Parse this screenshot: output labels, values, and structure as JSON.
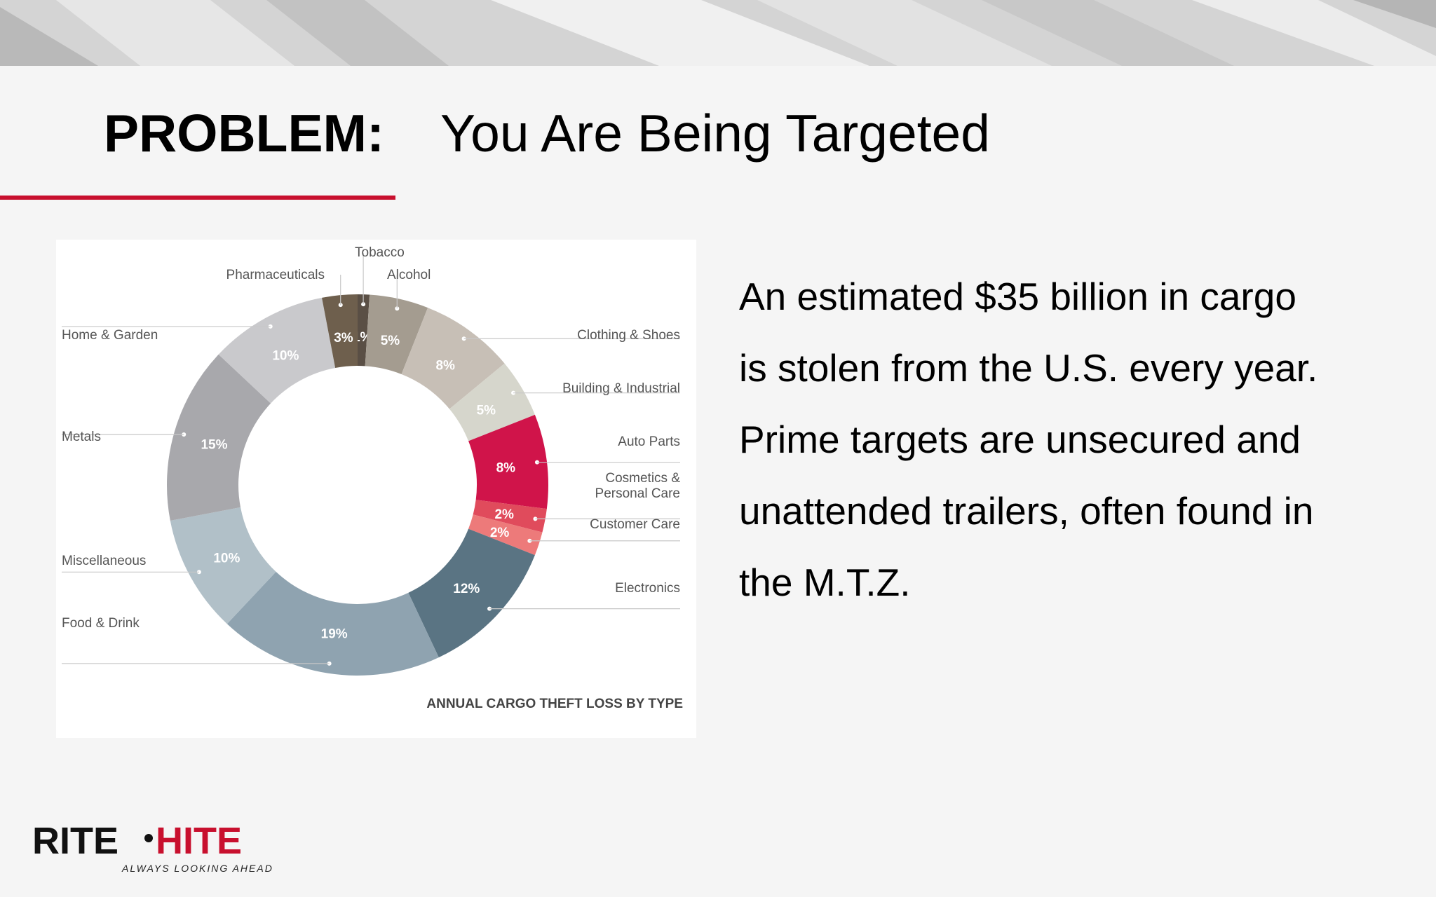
{
  "slide": {
    "title_label": "PROBLEM:",
    "title_text": "You Are Being Targeted",
    "body_lines": [
      "An estimated $35 billion in cargo",
      "is stolen from the U.S. every year.",
      "Prime targets are unsecured and",
      "unattended trailers, often found in",
      "the M.T.Z."
    ]
  },
  "logo": {
    "brand_left": "RITE",
    "brand_right": "HITE",
    "tagline": "ALWAYS LOOKING AHEAD"
  },
  "colors": {
    "accent": "#c8102e",
    "text": "#000000",
    "muted": "#555555"
  },
  "chart_data": {
    "type": "pie",
    "title": "ANNUAL CARGO THEFT LOSS BY TYPE",
    "unit": "%",
    "slices": [
      {
        "label": "Tobacco",
        "value": 1,
        "color": "#5a4f45"
      },
      {
        "label": "Alcohol",
        "value": 5,
        "color": "#a49c90"
      },
      {
        "label": "Clothing & Shoes",
        "value": 8,
        "color": "#c7bfb6"
      },
      {
        "label": "Building & Industrial",
        "value": 5,
        "color": "#d6d6cc"
      },
      {
        "label": "Auto Parts",
        "value": 8,
        "color": "#d0144a"
      },
      {
        "label": "Cosmetics & Personal Care",
        "value": 2,
        "color": "#e04b5c"
      },
      {
        "label": "Customer Care",
        "value": 2,
        "color": "#ed7a7a"
      },
      {
        "label": "Electronics",
        "value": 12,
        "color": "#5a7483"
      },
      {
        "label": "Food & Drink",
        "value": 19,
        "color": "#8fa3b0"
      },
      {
        "label": "Miscellaneous",
        "value": 10,
        "color": "#b1c0c8"
      },
      {
        "label": "Metals",
        "value": 15,
        "color": "#a8a8ac"
      },
      {
        "label": "Home & Garden",
        "value": 10,
        "color": "#c9c9cc"
      },
      {
        "label": "Pharmaceuticals",
        "value": 3,
        "color": "#6e5f4d"
      }
    ]
  }
}
